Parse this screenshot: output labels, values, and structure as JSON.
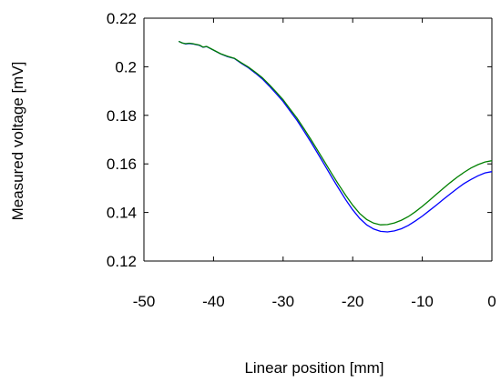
{
  "chart_data": {
    "type": "line",
    "xlabel": "Linear position [mm]",
    "ylabel": "Measured voltage [mV]",
    "xlim": [
      -50,
      0
    ],
    "ylim": [
      0.12,
      0.22
    ],
    "xticks": [
      -50,
      -40,
      -30,
      -20,
      -10,
      0
    ],
    "yticks": [
      0.12,
      0.14,
      0.16,
      0.18,
      0.2,
      0.22
    ],
    "xtick_labels": [
      "-50",
      "-40",
      "-30",
      "-20",
      "-10",
      "0"
    ],
    "ytick_labels": [
      "0.12",
      "0.14",
      "0.16",
      "0.18",
      "0.2",
      "0.22"
    ],
    "grid": false,
    "legend": "none",
    "series": [
      {
        "color": "#0000ff",
        "x": [
          -45,
          -44.5,
          -44,
          -43.5,
          -43,
          -42,
          -41.5,
          -41,
          -40,
          -39,
          -38,
          -37,
          -36,
          -35,
          -34,
          -33,
          -32,
          -31,
          -30,
          -29,
          -28,
          -27,
          -26,
          -25,
          -24,
          -23,
          -22,
          -21,
          -20,
          -19,
          -18,
          -17,
          -16,
          -15,
          -14,
          -13,
          -12,
          -11,
          -10,
          -9,
          -8,
          -7,
          -6,
          -5,
          -4,
          -3,
          -2,
          -1,
          0
        ],
        "values": [
          0.2105,
          0.2098,
          0.2094,
          0.2096,
          0.2094,
          0.2088,
          0.208,
          0.2083,
          0.2068,
          0.2053,
          0.2042,
          0.2034,
          0.2014,
          0.1996,
          0.1974,
          0.195,
          0.1921,
          0.1889,
          0.1857,
          0.1818,
          0.1779,
          0.1735,
          0.1689,
          0.1642,
          0.1594,
          0.1545,
          0.1498,
          0.1452,
          0.1411,
          0.1376,
          0.1349,
          0.1332,
          0.1322,
          0.132,
          0.1324,
          0.1333,
          0.1347,
          0.1365,
          0.1385,
          0.1407,
          0.143,
          0.1453,
          0.1476,
          0.1498,
          0.1519,
          0.1536,
          0.1551,
          0.1563,
          0.1568
        ]
      },
      {
        "color": "#008000",
        "x": [
          -45,
          -44.5,
          -44,
          -43.5,
          -43,
          -42,
          -41.5,
          -41,
          -40,
          -39,
          -38,
          -37,
          -36,
          -35,
          -34,
          -33,
          -32,
          -31,
          -30,
          -29,
          -28,
          -27,
          -26,
          -25,
          -24,
          -23,
          -22,
          -21,
          -20,
          -19,
          -18,
          -17,
          -16,
          -15,
          -14,
          -13,
          -12,
          -11,
          -10,
          -9,
          -8,
          -7,
          -6,
          -5,
          -4,
          -3,
          -2,
          -1,
          0
        ],
        "values": [
          0.2105,
          0.2098,
          0.2095,
          0.2097,
          0.2095,
          0.2089,
          0.2081,
          0.2084,
          0.2069,
          0.2054,
          0.2043,
          0.2035,
          0.2016,
          0.1999,
          0.1978,
          0.1955,
          0.1927,
          0.1896,
          0.1864,
          0.1826,
          0.1788,
          0.1745,
          0.17,
          0.1654,
          0.1607,
          0.1559,
          0.1514,
          0.147,
          0.143,
          0.1396,
          0.1371,
          0.1356,
          0.1349,
          0.135,
          0.1357,
          0.1368,
          0.1383,
          0.1403,
          0.1425,
          0.1449,
          0.1474,
          0.1499,
          0.1523,
          0.1545,
          0.1565,
          0.1583,
          0.1597,
          0.1608,
          0.1613
        ]
      }
    ]
  }
}
